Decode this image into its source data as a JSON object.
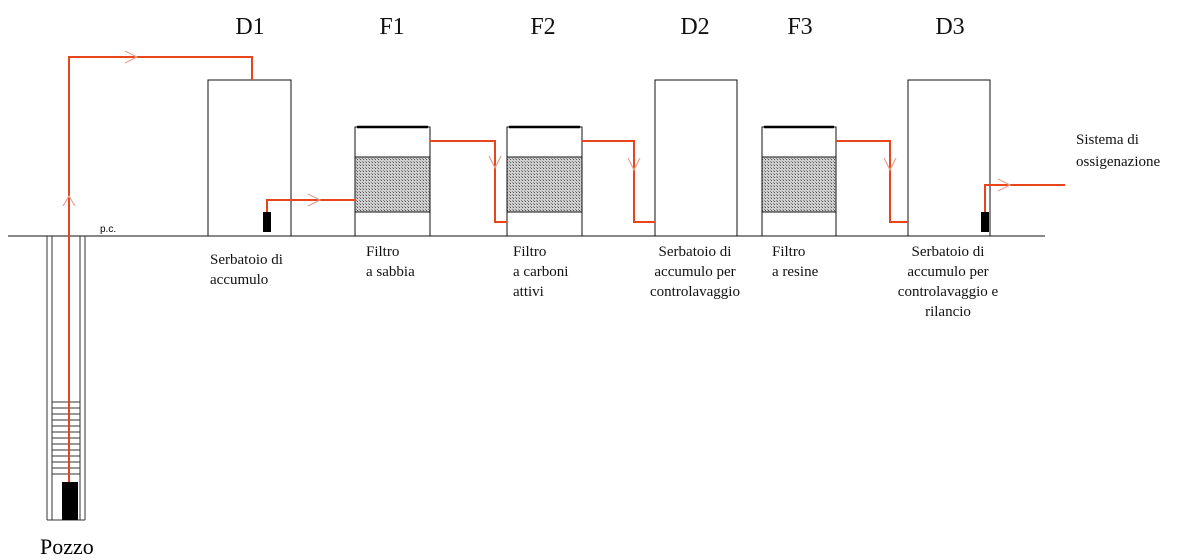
{
  "units": [
    {
      "code": "D1",
      "label": [
        "Serbatoio di",
        "accumulo"
      ]
    },
    {
      "code": "F1",
      "label": [
        "Filtro",
        "a sabbia"
      ]
    },
    {
      "code": "F2",
      "label": [
        "Filtro",
        "a carboni",
        "attivi"
      ]
    },
    {
      "code": "D2",
      "label": [
        "Serbatoio di",
        "accumulo per",
        "controlavaggio"
      ]
    },
    {
      "code": "F3",
      "label": [
        "Filtro",
        "a resine"
      ]
    },
    {
      "code": "D3",
      "label": [
        "Serbatoio di",
        "accumulo per",
        "controlavaggio e",
        "rilancio"
      ]
    }
  ],
  "ground_label": "p.c.",
  "well_label": "Pozzo",
  "output_label": [
    "Sistema di",
    "ossigenazione"
  ]
}
